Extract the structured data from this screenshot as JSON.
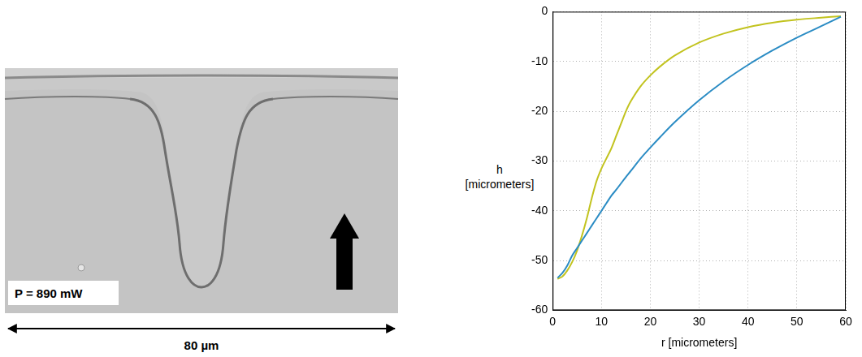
{
  "image": {
    "label": "P = 890 mW",
    "scale_bar": "80 µm"
  },
  "chart_data": {
    "type": "line",
    "x_label": "r [micrometers]",
    "y_label": [
      "h",
      "[micrometers]"
    ],
    "x": [
      1,
      2,
      3,
      4,
      5,
      6,
      7,
      8,
      9,
      10,
      11,
      12,
      13,
      14,
      15,
      16,
      18,
      20,
      22,
      25,
      30,
      35,
      40,
      45,
      50,
      55,
      59
    ],
    "series": [
      {
        "color": "#2b8cc4",
        "values": [
          -53.5,
          -52.5,
          -51,
          -49,
          -47.5,
          -46,
          -44.5,
          -43,
          -41.5,
          -40,
          -38.5,
          -37,
          -35.8,
          -34.5,
          -33.2,
          -32,
          -29.5,
          -27.3,
          -25.2,
          -22.2,
          -17.8,
          -14,
          -10.7,
          -7.8,
          -5.2,
          -2.9,
          -1
        ]
      },
      {
        "color": "#c2c31f",
        "values": [
          -53.7,
          -53.2,
          -52,
          -50.3,
          -48,
          -45,
          -41.5,
          -37.5,
          -34,
          -31.5,
          -29.5,
          -27.5,
          -25,
          -22.5,
          -20,
          -18,
          -15,
          -12.8,
          -11,
          -8.8,
          -6.2,
          -4.4,
          -3.1,
          -2.2,
          -1.6,
          -1.2,
          -0.9
        ]
      }
    ],
    "xlim": [
      0,
      60
    ],
    "xticks": [
      0,
      10,
      20,
      30,
      40,
      50,
      60
    ],
    "ylim": [
      -60,
      0
    ],
    "yticks": [
      -60,
      -50,
      -40,
      -30,
      -20,
      -10,
      0
    ],
    "grid": true
  }
}
